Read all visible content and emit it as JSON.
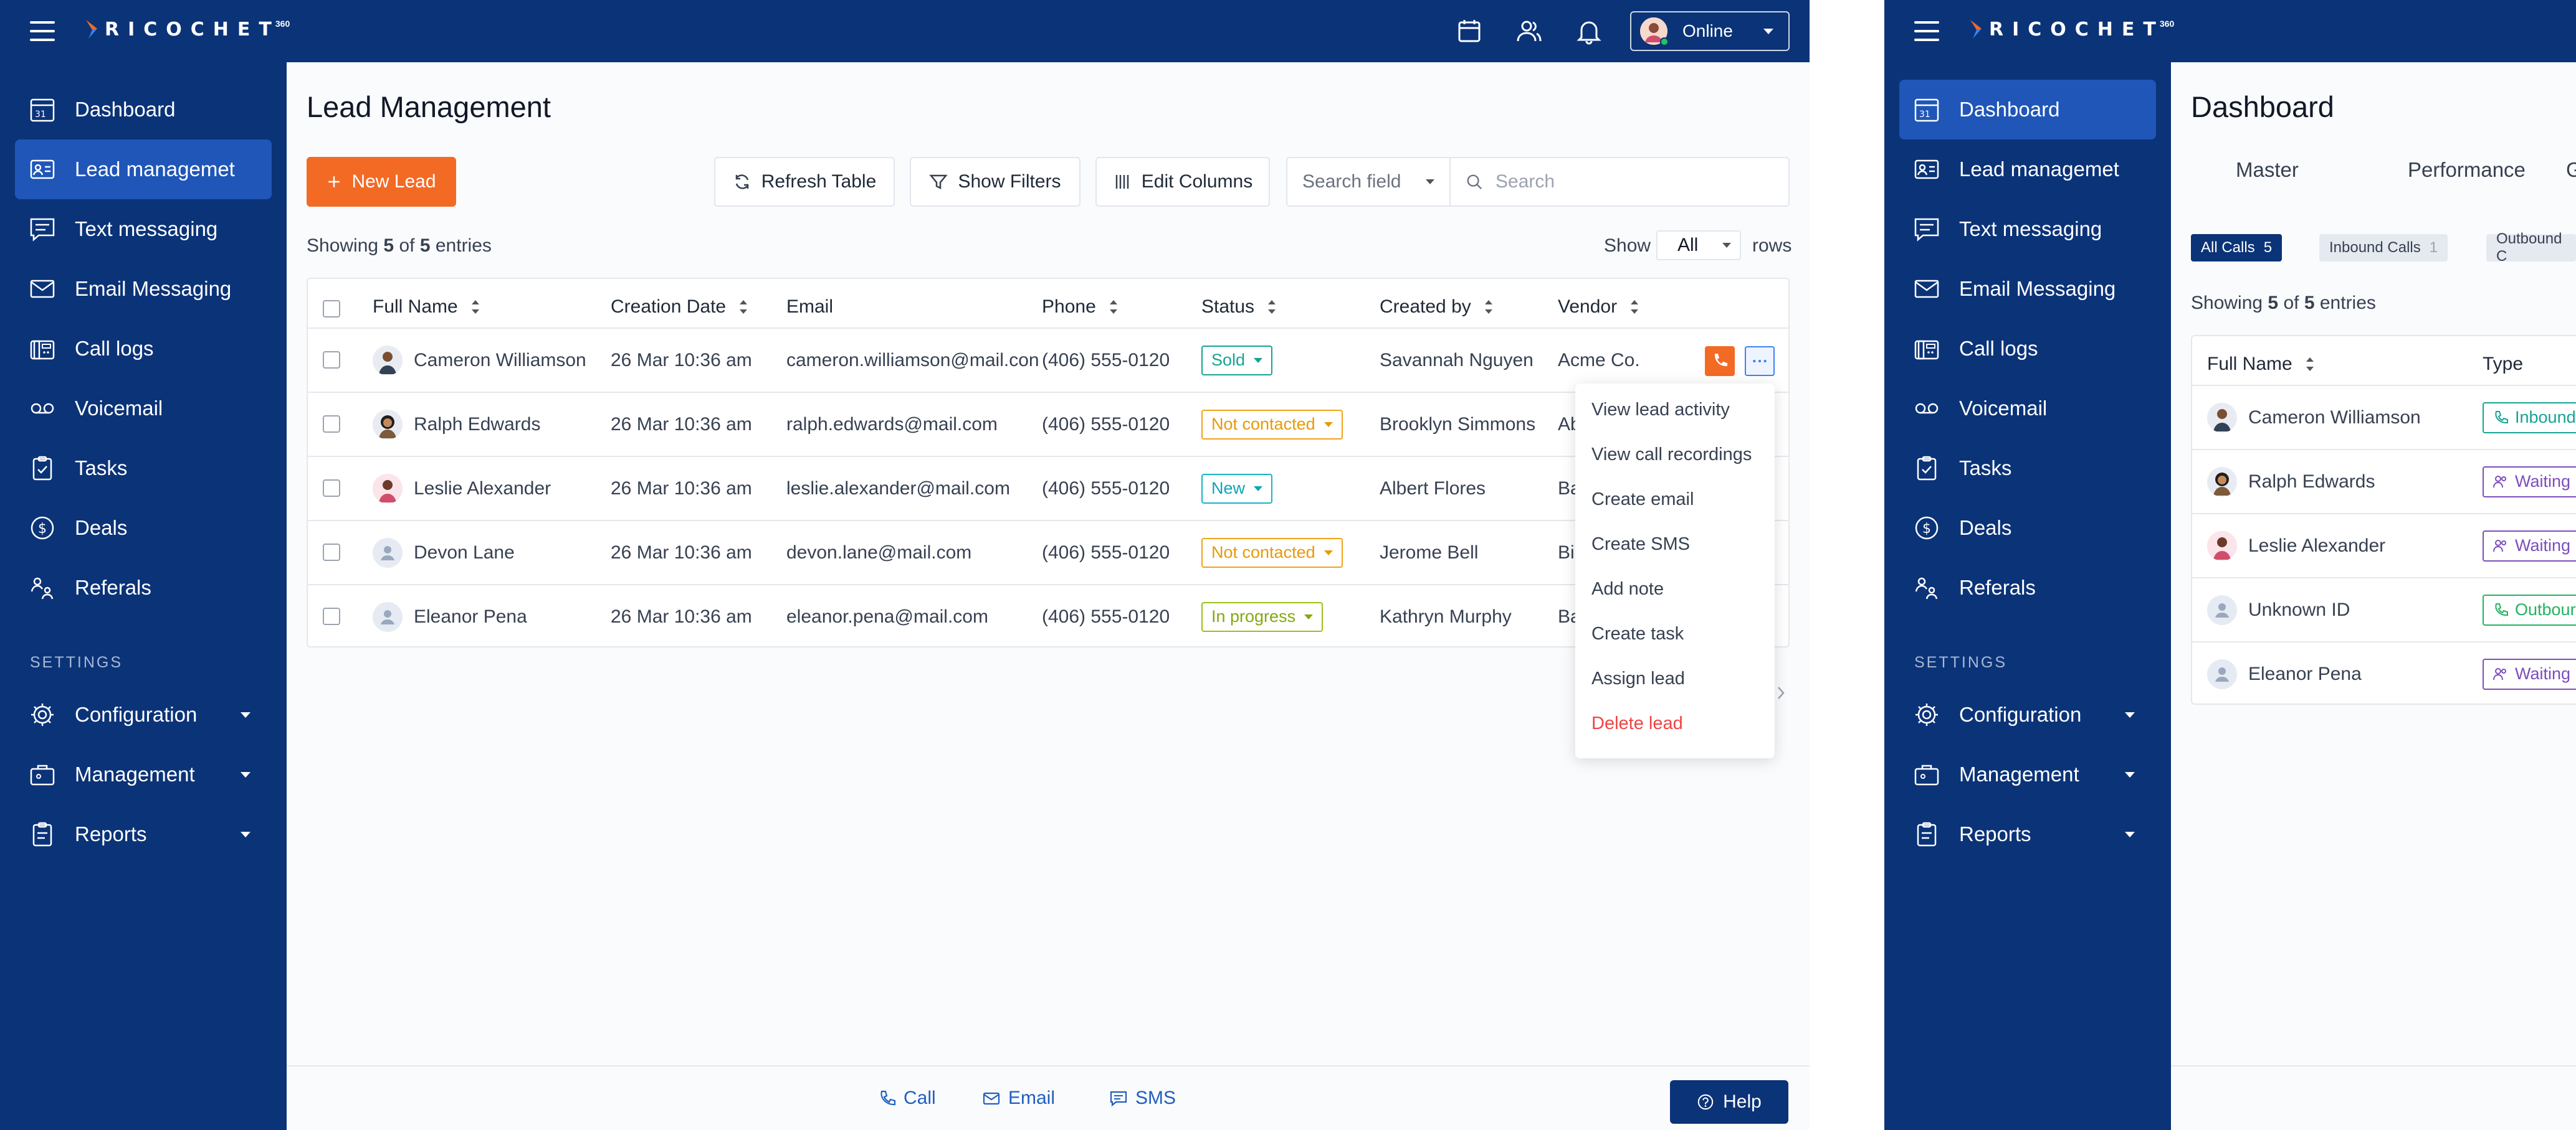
{
  "app": {
    "logo_text": "RICOCHET",
    "logo_sup": "360",
    "status": "Online",
    "colors": {
      "navy": "#0b3378",
      "active": "#1f56b8",
      "orange": "#f36a25"
    }
  },
  "sidebar": {
    "items": [
      {
        "label": "Dashboard",
        "icon": "calendar-icon"
      },
      {
        "label": "Lead managemet",
        "icon": "contact-card-icon"
      },
      {
        "label": "Text messaging",
        "icon": "chat-icon"
      },
      {
        "label": "Email Messaging",
        "icon": "mail-icon"
      },
      {
        "label": "Call logs",
        "icon": "fax-icon"
      },
      {
        "label": "Voicemail",
        "icon": "voicemail-icon"
      },
      {
        "label": "Tasks",
        "icon": "clipboard-icon"
      },
      {
        "label": "Deals",
        "icon": "dollar-icon"
      },
      {
        "label": "Referals",
        "icon": "referral-icon"
      }
    ],
    "settings_heading": "SETTINGS",
    "settings_items": [
      {
        "label": "Configuration",
        "icon": "gear-icon"
      },
      {
        "label": "Management",
        "icon": "briefcase-icon"
      },
      {
        "label": "Reports",
        "icon": "report-icon"
      }
    ]
  },
  "lead": {
    "title": "Lead Management",
    "new_lead": "New Lead",
    "refresh": "Refresh Table",
    "filters": "Show Filters",
    "columns_btn": "Edit Columns",
    "search_field": "Search field",
    "search_placeholder": "Search",
    "showing_pre": "Showing",
    "showing_a": "5",
    "showing_mid": "of",
    "showing_b": "5",
    "showing_post": "entries",
    "show_label": "Show",
    "rows_value": "All",
    "rows_label": "rows",
    "headers": [
      "Full Name",
      "Creation Date",
      "Email",
      "Phone",
      "Status",
      "Created by",
      "Vendor"
    ],
    "rows": [
      {
        "name": "Cameron Williamson",
        "date": "26 Mar 10:36 am",
        "email": "cameron.williamson@mail.con",
        "phone": "(406) 555-0120",
        "status": "Sold",
        "created_by": "Savannah Nguyen",
        "vendor": "Acme Co."
      },
      {
        "name": "Ralph Edwards",
        "date": "26 Mar 10:36 am",
        "email": "ralph.edwards@mail.com",
        "phone": "(406) 555-0120",
        "status": "Not contacted",
        "created_by": "Brooklyn Simmons",
        "vendor": "Ab"
      },
      {
        "name": "Leslie Alexander",
        "date": "26 Mar 10:36 am",
        "email": "leslie.alexander@mail.com",
        "phone": "(406) 555-0120",
        "status": "New",
        "created_by": "Albert Flores",
        "vendor": "Ba"
      },
      {
        "name": "Devon Lane",
        "date": "26 Mar 10:36 am",
        "email": "devon.lane@mail.com",
        "phone": "(406) 555-0120",
        "status": "Not contacted",
        "created_by": "Jerome Bell",
        "vendor": "Bi"
      },
      {
        "name": "Eleanor Pena",
        "date": "26 Mar 10:36 am",
        "email": "eleanor.pena@mail.com",
        "phone": "(406) 555-0120",
        "status": "In progress",
        "created_by": "Kathryn Murphy",
        "vendor": "Ba"
      }
    ],
    "menu": [
      "View lead activity",
      "View call recordings",
      "Create email",
      "Create SMS",
      "Add note",
      "Create task",
      "Assign lead",
      "Delete lead"
    ]
  },
  "bottom": {
    "call": "Call",
    "email": "Email",
    "sms": "SMS",
    "help": "Help"
  },
  "dashboard": {
    "title": "Dashboard",
    "tabs": [
      "Master",
      "Performance",
      "Ga"
    ],
    "chips": [
      {
        "label": "All Calls",
        "count": "5"
      },
      {
        "label": "Inbound Calls",
        "count": "1"
      },
      {
        "label": "Outbound C",
        "count": ""
      }
    ],
    "showing_pre": "Showing",
    "showing_a": "5",
    "showing_mid": "of",
    "showing_b": "5",
    "showing_post": "entries",
    "headers": [
      "Full Name",
      "Type"
    ],
    "rows": [
      {
        "name": "Cameron Williamson",
        "type": "Inbound"
      },
      {
        "name": "Ralph Edwards",
        "type": "Waiting"
      },
      {
        "name": "Leslie Alexander",
        "type": "Waiting"
      },
      {
        "name": "Unknown ID",
        "type": "Outbour"
      },
      {
        "name": "Eleanor Pena",
        "type": "Waiting"
      }
    ]
  }
}
